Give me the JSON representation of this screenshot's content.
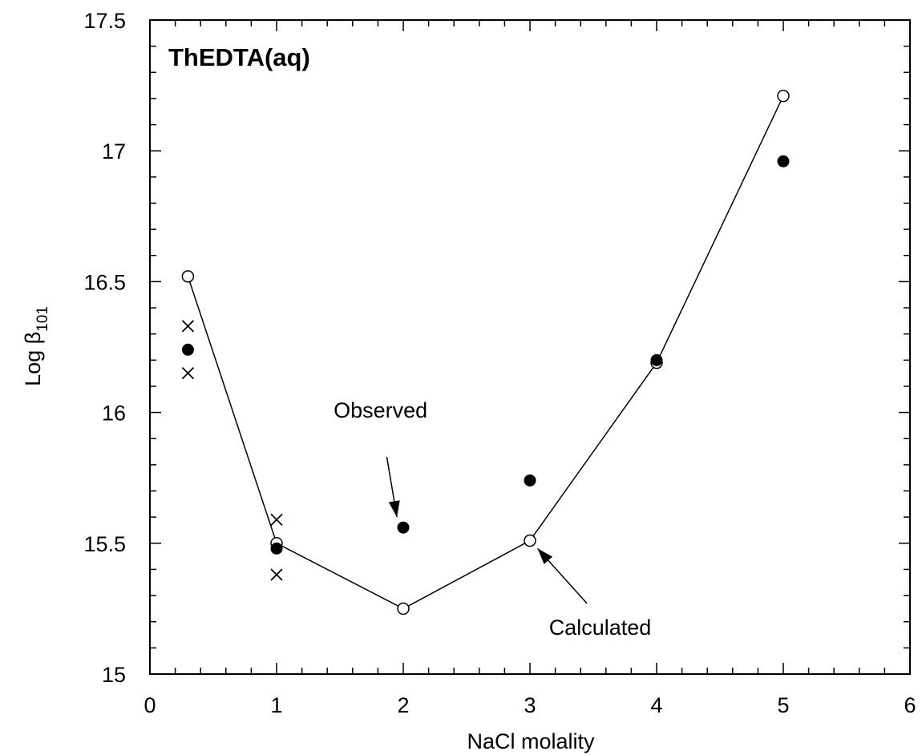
{
  "chart_data": {
    "type": "scatter",
    "title": "ThEDTA(aq)",
    "xlabel": "NaCl molality",
    "ylabel_main": "Log β",
    "ylabel_sub": "101",
    "xlim": [
      0,
      6
    ],
    "ylim": [
      15,
      17.5
    ],
    "x_ticks": [
      "0",
      "1",
      "2",
      "3",
      "4",
      "5",
      "6"
    ],
    "y_ticks": [
      "15",
      "15.5",
      "16",
      "16.5",
      "17",
      "17.5"
    ],
    "grid": false,
    "series": [
      {
        "marker": "open-circle-line",
        "points": [
          [
            0.3,
            16.52
          ],
          [
            1.0,
            15.5
          ],
          [
            2.0,
            15.25
          ],
          [
            3.0,
            15.51
          ],
          [
            4.0,
            16.19
          ],
          [
            5.0,
            17.21
          ]
        ]
      },
      {
        "marker": "filled-circle",
        "points": [
          [
            0.3,
            16.24
          ],
          [
            1.0,
            15.48
          ],
          [
            2.0,
            15.56
          ],
          [
            3.0,
            15.74
          ],
          [
            4.0,
            16.2
          ],
          [
            5.0,
            16.96
          ]
        ]
      },
      {
        "marker": "cross",
        "points": [
          [
            0.3,
            16.33
          ],
          [
            0.3,
            16.15
          ],
          [
            1.0,
            15.59
          ],
          [
            1.0,
            15.38
          ]
        ]
      }
    ],
    "annotations": [
      {
        "text": "Observed",
        "label_x": 1.45,
        "label_y": 15.98,
        "arrow_from": [
          1.87,
          15.83
        ],
        "arrow_to": [
          1.95,
          15.6
        ]
      },
      {
        "text": "Calculated",
        "label_x": 3.15,
        "label_y": 15.15,
        "arrow_from": [
          3.45,
          15.27
        ],
        "arrow_to": [
          3.06,
          15.48
        ]
      }
    ]
  }
}
